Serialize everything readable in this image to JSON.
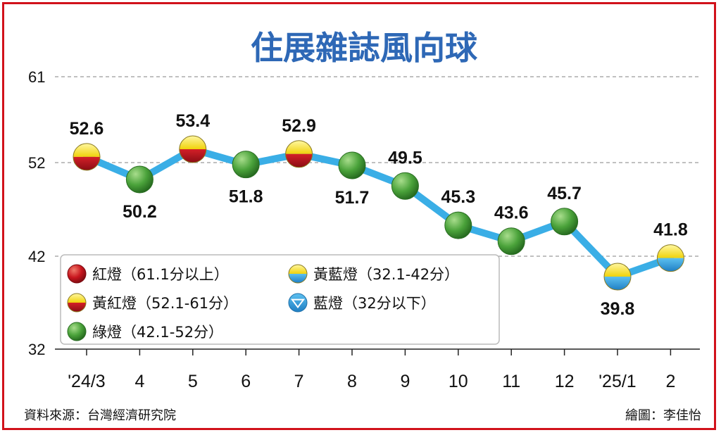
{
  "title": "住展雜誌風向球",
  "chart_data": {
    "type": "line",
    "title": "住展雜誌風向球",
    "categories": [
      "'24/3",
      "4",
      "5",
      "6",
      "7",
      "8",
      "9",
      "10",
      "11",
      "12",
      "'25/1",
      "2"
    ],
    "values": [
      52.6,
      50.2,
      53.4,
      51.8,
      52.9,
      51.7,
      49.5,
      45.3,
      43.6,
      45.7,
      39.8,
      41.8
    ],
    "value_labels": [
      "52.6",
      "50.2",
      "53.4",
      "51.8",
      "52.9",
      "51.7",
      "49.5",
      "45.3",
      "43.6",
      "45.7",
      "39.8",
      "41.8"
    ],
    "yticks": [
      "61",
      "52",
      "42",
      "32"
    ],
    "ylim": [
      32,
      61
    ],
    "grid": true,
    "line_color": "#3aaee6",
    "legend": [
      {
        "label": "紅燈（61.1分以上）",
        "marker": "red"
      },
      {
        "label": "黃藍燈（32.1-42分）",
        "marker": "yellow-blue"
      },
      {
        "label": "黃紅燈（52.1-61分）",
        "marker": "yellow-red"
      },
      {
        "label": "藍燈（32分以下）",
        "marker": "blue-triangle"
      },
      {
        "label": "綠燈（42.1-52分）",
        "marker": "green"
      }
    ],
    "legend_position": "bottom-left"
  },
  "footer": {
    "source": "資料來源：台灣經濟研究院",
    "credit": "繪圖：李佳怡"
  },
  "colors": {
    "frame": "#d1121b",
    "title": "#2e68b6",
    "red": "#c8161e",
    "yellow": "#f2e21c",
    "green": "#3f9a35",
    "blue": "#2e9fe0"
  }
}
